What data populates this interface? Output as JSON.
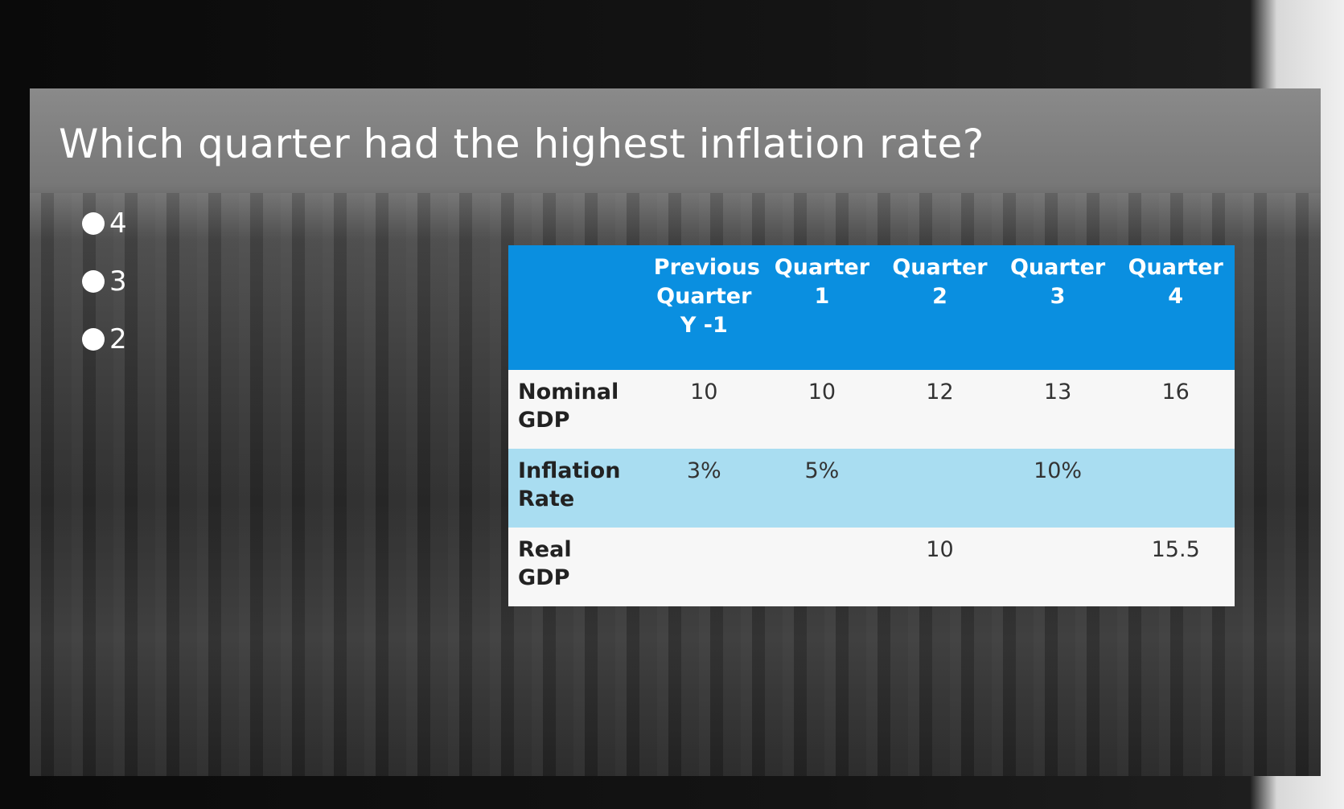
{
  "question": "Which quarter had the highest inflation rate?",
  "options": [
    "4",
    "3",
    "2"
  ],
  "table": {
    "header": [
      null,
      "Previous Quarter Y -1",
      "Quarter 1",
      "Quarter 2",
      "Quarter 3",
      "Quarter 4"
    ],
    "rows": [
      [
        "Nominal GDP",
        "10",
        "10",
        "12",
        "13",
        "16"
      ],
      [
        "Inflation Rate",
        "3%",
        "5%",
        null,
        "10%",
        null
      ],
      [
        "Real GDP",
        null,
        null,
        "10",
        null,
        "15.5"
      ]
    ]
  }
}
